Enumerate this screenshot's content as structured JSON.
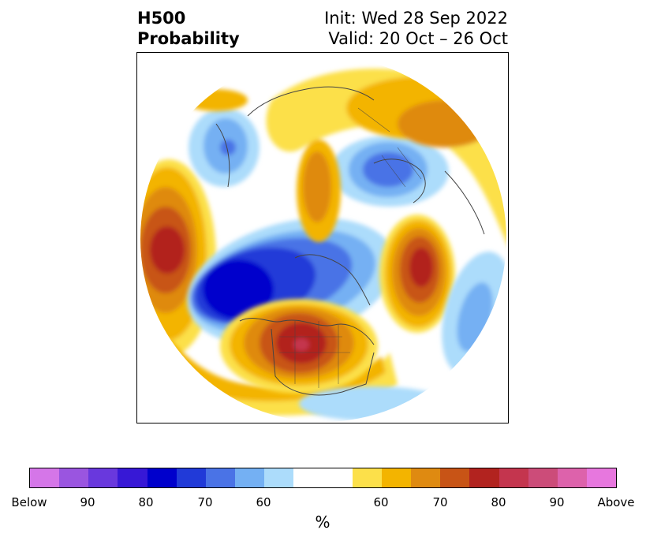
{
  "title": {
    "left_line1": "H500",
    "left_line2": "Probability",
    "right_line1": "Init: Wed 28 Sep 2022",
    "right_line2": "Valid: 20 Oct – 26 Oct"
  },
  "colorbar": {
    "unit": "%",
    "colors": [
      "#d576e8",
      "#9a55e0",
      "#6938dd",
      "#3718d6",
      "#0000cc",
      "#213ad8",
      "#4a73e6",
      "#74b0f3",
      "#acdcfb",
      "#ffffff",
      "#ffffff",
      "#fce04a",
      "#f3b400",
      "#df8a11",
      "#c85416",
      "#b2231f",
      "#c4354e",
      "#cc4c79",
      "#dd62ab",
      "#e777de"
    ],
    "ticks": [
      {
        "label": "Below"
      },
      {
        "label": "90"
      },
      {
        "label": "80"
      },
      {
        "label": "70"
      },
      {
        "label": "60"
      },
      {
        "label": "60"
      },
      {
        "label": "70"
      },
      {
        "label": "80"
      },
      {
        "label": "90"
      },
      {
        "label": "Above"
      }
    ]
  },
  "legend": {
    "below_colors": [
      "#acdcfb",
      "#74b0f3",
      "#4a73e6",
      "#213ad8",
      "#0000cc"
    ],
    "above_colors": [
      "#fce04a",
      "#f3b400",
      "#df8a11",
      "#c85416",
      "#b2231f"
    ]
  }
}
